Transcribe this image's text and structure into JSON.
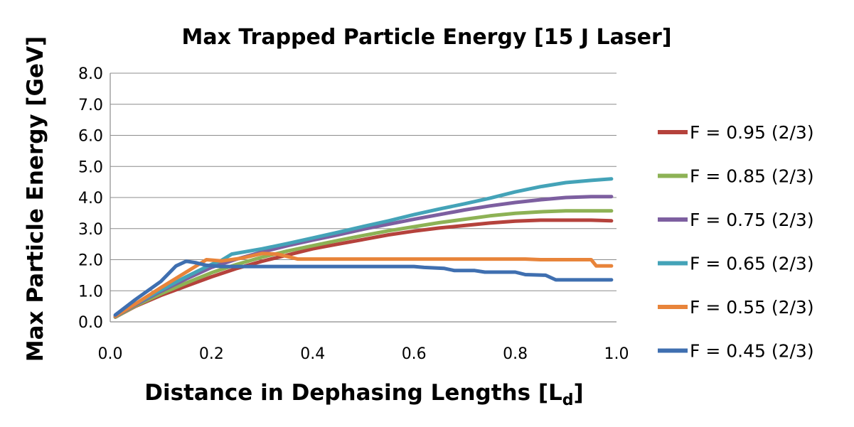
{
  "chart_data": {
    "type": "line",
    "title": "Max Trapped Particle Energy [15 J Laser]",
    "xlabel": "Distance in Dephasing Lengths [L",
    "xlabel_subscript": "d",
    "xlabel_suffix": "]",
    "ylabel": "Max Particle Energy [GeV]",
    "xlim": [
      0.0,
      1.0
    ],
    "ylim": [
      0.0,
      8.0
    ],
    "xticks": [
      "0.0",
      "0.2",
      "0.4",
      "0.6",
      "0.8",
      "1.0"
    ],
    "yticks": [
      "0.0",
      "1.0",
      "2.0",
      "3.0",
      "4.0",
      "5.0",
      "6.0",
      "7.0",
      "8.0"
    ],
    "grid": "horizontal",
    "legend_position": "right",
    "series": [
      {
        "name": "F = 0.95 (2/3)",
        "color": "#b5423c",
        "x": [
          0.01,
          0.05,
          0.1,
          0.15,
          0.2,
          0.25,
          0.3,
          0.35,
          0.4,
          0.45,
          0.5,
          0.55,
          0.6,
          0.65,
          0.7,
          0.75,
          0.8,
          0.85,
          0.9,
          0.95,
          0.99
        ],
        "y": [
          0.15,
          0.5,
          0.85,
          1.15,
          1.45,
          1.72,
          1.95,
          2.15,
          2.35,
          2.5,
          2.65,
          2.8,
          2.92,
          3.02,
          3.1,
          3.18,
          3.24,
          3.27,
          3.27,
          3.27,
          3.25
        ]
      },
      {
        "name": "F = 0.85 (2/3)",
        "color": "#8db255",
        "x": [
          0.01,
          0.05,
          0.1,
          0.15,
          0.2,
          0.25,
          0.3,
          0.35,
          0.4,
          0.45,
          0.5,
          0.55,
          0.6,
          0.65,
          0.7,
          0.75,
          0.8,
          0.85,
          0.9,
          0.95,
          0.99
        ],
        "y": [
          0.15,
          0.52,
          0.9,
          1.25,
          1.58,
          1.85,
          2.08,
          2.28,
          2.45,
          2.62,
          2.78,
          2.93,
          3.06,
          3.19,
          3.3,
          3.41,
          3.49,
          3.54,
          3.57,
          3.57,
          3.57
        ]
      },
      {
        "name": "F = 0.75 (2/3)",
        "color": "#7d5fa0",
        "x": [
          0.01,
          0.05,
          0.1,
          0.15,
          0.2,
          0.25,
          0.3,
          0.35,
          0.4,
          0.45,
          0.5,
          0.55,
          0.6,
          0.65,
          0.7,
          0.75,
          0.8,
          0.85,
          0.9,
          0.95,
          0.99
        ],
        "y": [
          0.17,
          0.55,
          0.98,
          1.38,
          1.75,
          2.02,
          2.25,
          2.45,
          2.63,
          2.8,
          2.98,
          3.14,
          3.3,
          3.45,
          3.6,
          3.73,
          3.84,
          3.93,
          4.0,
          4.03,
          4.03
        ]
      },
      {
        "name": "F = 0.65 (2/3)",
        "color": "#44a3b8",
        "x": [
          0.01,
          0.05,
          0.1,
          0.15,
          0.2,
          0.22,
          0.24,
          0.3,
          0.35,
          0.4,
          0.45,
          0.5,
          0.55,
          0.6,
          0.65,
          0.7,
          0.75,
          0.8,
          0.85,
          0.9,
          0.95,
          0.99
        ],
        "y": [
          0.18,
          0.58,
          1.02,
          1.45,
          1.85,
          1.98,
          2.18,
          2.35,
          2.52,
          2.7,
          2.88,
          3.07,
          3.25,
          3.45,
          3.63,
          3.8,
          3.98,
          4.18,
          4.35,
          4.48,
          4.55,
          4.6
        ]
      },
      {
        "name": "F = 0.55 (2/3)",
        "color": "#e8843a",
        "x": [
          0.01,
          0.05,
          0.1,
          0.15,
          0.19,
          0.22,
          0.26,
          0.3,
          0.33,
          0.35,
          0.37,
          0.4,
          0.5,
          0.6,
          0.7,
          0.8,
          0.82,
          0.85,
          0.95,
          0.96,
          0.99
        ],
        "y": [
          0.18,
          0.58,
          1.1,
          1.6,
          2.0,
          1.96,
          2.05,
          2.2,
          2.18,
          2.1,
          2.02,
          2.02,
          2.02,
          2.02,
          2.02,
          2.02,
          2.02,
          2.0,
          2.0,
          1.8,
          1.8
        ]
      },
      {
        "name": "F = 0.45 (2/3)",
        "color": "#3f6fb0",
        "x": [
          0.01,
          0.05,
          0.1,
          0.13,
          0.15,
          0.17,
          0.19,
          0.22,
          0.3,
          0.4,
          0.5,
          0.6,
          0.62,
          0.66,
          0.68,
          0.72,
          0.74,
          0.78,
          0.8,
          0.82,
          0.86,
          0.88,
          0.99
        ],
        "y": [
          0.22,
          0.72,
          1.3,
          1.8,
          1.95,
          1.9,
          1.82,
          1.78,
          1.78,
          1.78,
          1.78,
          1.78,
          1.75,
          1.72,
          1.65,
          1.65,
          1.6,
          1.6,
          1.6,
          1.52,
          1.5,
          1.35,
          1.35
        ]
      }
    ]
  }
}
